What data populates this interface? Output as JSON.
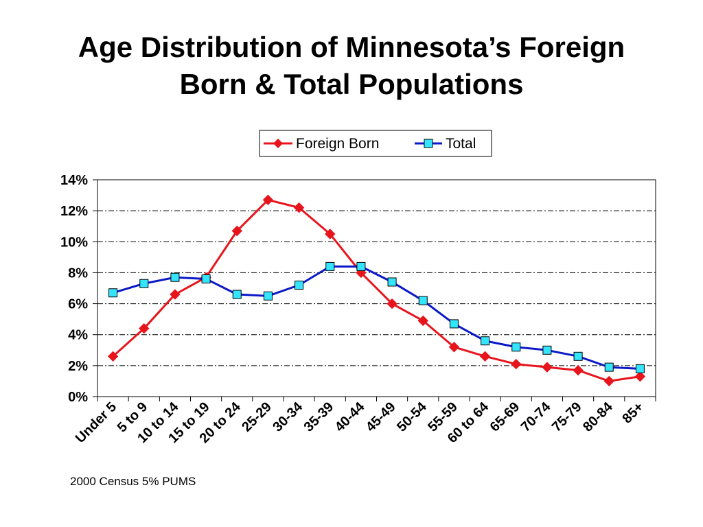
{
  "title_line1": "Age Distribution of Minnesota’s Foreign",
  "title_line2": "Born & Total Populations",
  "source_note": "2000 Census 5% PUMS",
  "chart_data": {
    "type": "line",
    "title": "Age Distribution of Minnesota’s Foreign Born & Total Populations",
    "xlabel": "",
    "ylabel": "",
    "categories": [
      "Under 5",
      "5 to 9",
      "10 to 14",
      "15 to 19",
      "20 to 24",
      "25-29",
      "30-34",
      "35-39",
      "40-44",
      "45-49",
      "50-54",
      "55-59",
      "60 to 64",
      "65-69",
      "70-74",
      "75-79",
      "80-84",
      "85+"
    ],
    "yticks": [
      "0%",
      "2%",
      "4%",
      "6%",
      "8%",
      "10%",
      "12%",
      "14%"
    ],
    "ylim": [
      0,
      14
    ],
    "grid": "horizontal dash-dot",
    "legend": "top-right, above plot",
    "series": [
      {
        "name": "Foreign Born",
        "color": "#e8141c",
        "marker": "diamond",
        "values": [
          2.6,
          4.4,
          6.6,
          7.7,
          10.7,
          12.7,
          12.2,
          10.5,
          8.0,
          6.0,
          4.9,
          3.2,
          2.6,
          2.1,
          1.9,
          1.7,
          1.0,
          1.3
        ]
      },
      {
        "name": "Total",
        "color": "#0a18c8",
        "marker": "square",
        "marker_fill": "#33e5ff",
        "values": [
          6.7,
          7.3,
          7.7,
          7.6,
          6.6,
          6.5,
          7.2,
          8.4,
          8.4,
          7.4,
          6.2,
          4.7,
          3.6,
          3.2,
          3.0,
          2.6,
          1.9,
          1.8
        ]
      }
    ]
  }
}
